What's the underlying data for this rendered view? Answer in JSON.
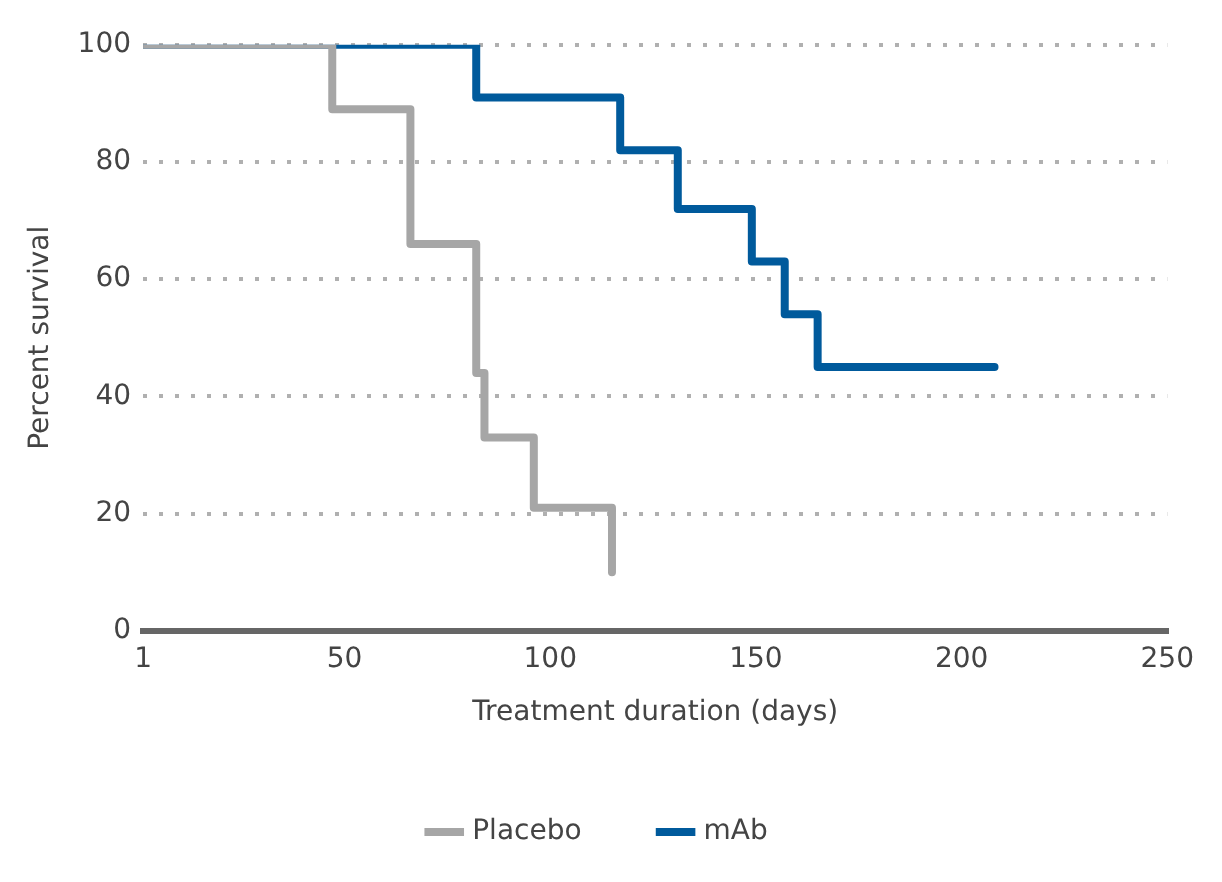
{
  "chart_data": {
    "type": "step",
    "xlabel": "Treatment duration (days)",
    "ylabel": "Percent survival",
    "xlim": [
      1,
      250
    ],
    "xticks": [
      1,
      50,
      100,
      150,
      200,
      250
    ],
    "ylim": [
      0,
      100
    ],
    "yticks": [
      0,
      20,
      40,
      60,
      80,
      100
    ],
    "grid": "y",
    "legend": "bottom",
    "marker": "none",
    "line_style": "solid",
    "series": [
      {
        "name": "Placebo",
        "color": "#a6a6a6",
        "x": [
          1,
          47,
          66,
          82,
          84,
          96,
          115
        ],
        "values": [
          100,
          89,
          66,
          44,
          33,
          21,
          10
        ]
      },
      {
        "name": "mAb",
        "color": "#005a9c",
        "x": [
          1,
          82,
          117,
          131,
          149,
          157,
          165,
          208
        ],
        "values": [
          100,
          91,
          82,
          72,
          63,
          54,
          45,
          45
        ]
      }
    ]
  }
}
